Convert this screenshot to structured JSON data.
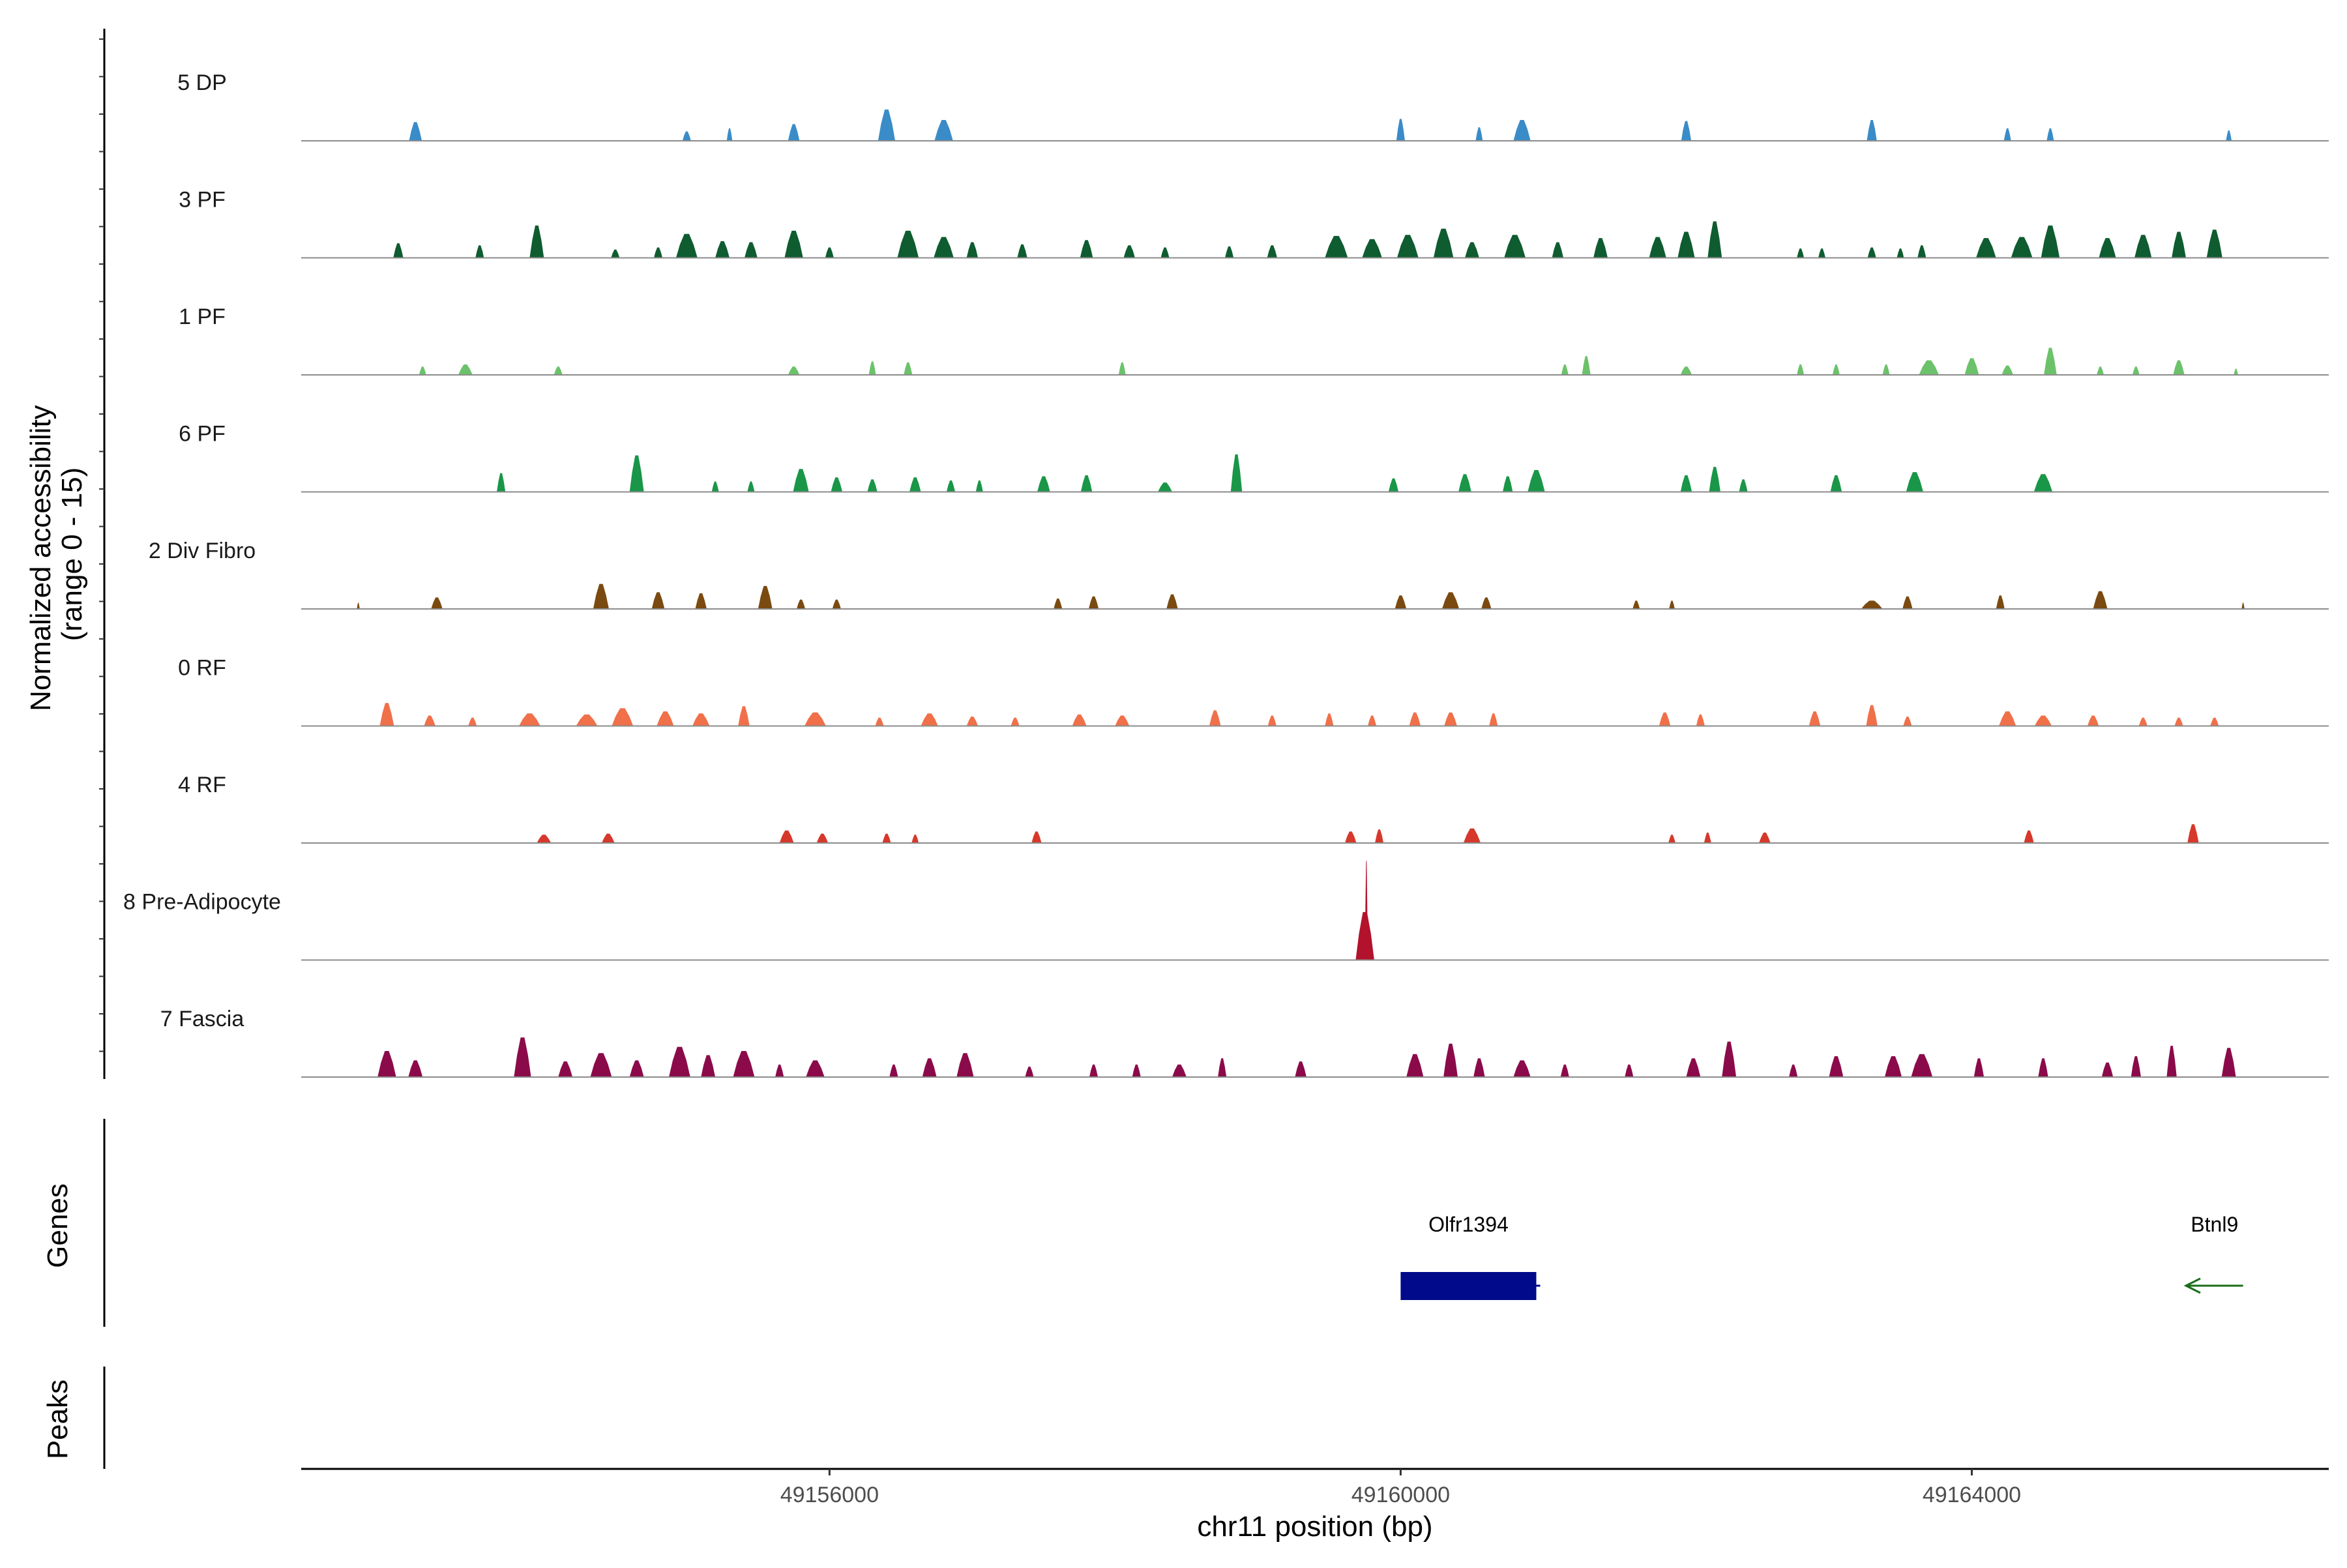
{
  "chart_data": {
    "type": "area",
    "region": {
      "chrom": "chr11",
      "start": 49152300,
      "end": 49166500
    },
    "xlabel": "chr11 position (bp)",
    "x_ticks": [
      49156000,
      49160000,
      49164000
    ],
    "x_tick_labels": [
      "49156000",
      "49160000",
      "49164000"
    ],
    "ylabel": "Normalized accessibility\n(range 0 - 15)",
    "ylabel_lines": [
      "Normalized accessibility",
      "(range 0 - 15)"
    ],
    "ylim": [
      0,
      15
    ],
    "panel_labels": {
      "genes": "Genes",
      "peaks": "Peaks"
    },
    "series": [
      {
        "name": "5 DP",
        "color": "#3a8cc8",
        "data_end": 49165900,
        "peaks": [
          [
            49153100,
            1.8,
            90
          ],
          [
            49155000,
            0.9,
            60
          ],
          [
            49155300,
            1.2,
            40
          ],
          [
            49155750,
            1.6,
            80
          ],
          [
            49156400,
            3.0,
            120
          ],
          [
            49156800,
            2.0,
            130
          ],
          [
            49160000,
            2.1,
            60
          ],
          [
            49160550,
            1.3,
            50
          ],
          [
            49160850,
            2.0,
            120
          ],
          [
            49162000,
            1.9,
            70
          ],
          [
            49163300,
            2.0,
            70
          ],
          [
            49164250,
            1.2,
            50
          ],
          [
            49164550,
            1.2,
            50
          ],
          [
            49165800,
            1.0,
            40
          ]
        ]
      },
      {
        "name": "3 PF",
        "color": "#0e5c30",
        "data_end": 49165900,
        "peaks": [
          [
            49152980,
            1.4,
            70
          ],
          [
            49153550,
            1.2,
            60
          ],
          [
            49153950,
            3.1,
            100
          ],
          [
            49154500,
            0.8,
            60
          ],
          [
            49154800,
            1.0,
            60
          ],
          [
            49155000,
            2.3,
            150
          ],
          [
            49155250,
            1.6,
            100
          ],
          [
            49155450,
            1.5,
            90
          ],
          [
            49155750,
            2.6,
            130
          ],
          [
            49156000,
            1.0,
            60
          ],
          [
            49156550,
            2.6,
            150
          ],
          [
            49156800,
            2.0,
            140
          ],
          [
            49157000,
            1.5,
            80
          ],
          [
            49157350,
            1.3,
            70
          ],
          [
            49157800,
            1.7,
            90
          ],
          [
            49158100,
            1.2,
            80
          ],
          [
            49158350,
            1.0,
            60
          ],
          [
            49158800,
            1.1,
            60
          ],
          [
            49159100,
            1.2,
            70
          ],
          [
            49159550,
            2.1,
            160
          ],
          [
            49159800,
            1.8,
            140
          ],
          [
            49160050,
            2.2,
            150
          ],
          [
            49160300,
            2.8,
            140
          ],
          [
            49160500,
            1.5,
            100
          ],
          [
            49160800,
            2.2,
            150
          ],
          [
            49161100,
            1.5,
            80
          ],
          [
            49161400,
            1.9,
            100
          ],
          [
            49161800,
            2.0,
            120
          ],
          [
            49162000,
            2.5,
            120
          ],
          [
            49162200,
            3.5,
            100
          ],
          [
            49162800,
            0.9,
            50
          ],
          [
            49162950,
            0.9,
            50
          ],
          [
            49163300,
            1.0,
            60
          ],
          [
            49163500,
            0.9,
            50
          ],
          [
            49163650,
            1.2,
            60
          ],
          [
            49164100,
            1.9,
            140
          ],
          [
            49164350,
            2.0,
            150
          ],
          [
            49164550,
            3.1,
            130
          ],
          [
            49164950,
            1.9,
            120
          ],
          [
            49165200,
            2.2,
            120
          ],
          [
            49165450,
            2.5,
            100
          ],
          [
            49165700,
            2.7,
            110
          ]
        ]
      },
      {
        "name": "1 PF",
        "color": "#6cc26a",
        "data_end": 49165900,
        "peaks": [
          [
            49153150,
            0.8,
            50
          ],
          [
            49153450,
            1.0,
            100
          ],
          [
            49154100,
            0.8,
            60
          ],
          [
            49155750,
            0.8,
            80
          ],
          [
            49156300,
            1.3,
            50
          ],
          [
            49156550,
            1.2,
            60
          ],
          [
            49158050,
            1.2,
            50
          ],
          [
            49161150,
            1.0,
            50
          ],
          [
            49161300,
            1.8,
            60
          ],
          [
            49162000,
            0.8,
            80
          ],
          [
            49162800,
            1.0,
            50
          ],
          [
            49163050,
            1.0,
            50
          ],
          [
            49163400,
            1.0,
            50
          ],
          [
            49163700,
            1.4,
            140
          ],
          [
            49164000,
            1.6,
            100
          ],
          [
            49164250,
            0.9,
            80
          ],
          [
            49164550,
            2.6,
            90
          ],
          [
            49164900,
            0.8,
            50
          ],
          [
            49165150,
            0.8,
            50
          ],
          [
            49165450,
            1.4,
            80
          ],
          [
            49165850,
            0.6,
            30
          ]
        ]
      },
      {
        "name": "6 PF",
        "color": "#1a9648",
        "data_end": 49165900,
        "peaks": [
          [
            49153700,
            1.8,
            60
          ],
          [
            49154650,
            3.5,
            100
          ],
          [
            49155200,
            1.0,
            50
          ],
          [
            49155450,
            1.0,
            50
          ],
          [
            49155800,
            2.2,
            110
          ],
          [
            49156050,
            1.4,
            80
          ],
          [
            49156300,
            1.2,
            70
          ],
          [
            49156600,
            1.4,
            80
          ],
          [
            49156850,
            1.1,
            60
          ],
          [
            49157050,
            1.1,
            50
          ],
          [
            49157500,
            1.5,
            90
          ],
          [
            49157800,
            1.6,
            80
          ],
          [
            49158350,
            0.9,
            100
          ],
          [
            49158850,
            3.6,
            80
          ],
          [
            49159950,
            1.3,
            70
          ],
          [
            49160450,
            1.7,
            90
          ],
          [
            49160750,
            1.5,
            70
          ],
          [
            49160950,
            2.1,
            120
          ],
          [
            49162000,
            1.6,
            80
          ],
          [
            49162200,
            2.4,
            80
          ],
          [
            49162400,
            1.2,
            60
          ],
          [
            49163050,
            1.6,
            80
          ],
          [
            49163600,
            1.9,
            120
          ],
          [
            49164500,
            1.7,
            130
          ]
        ]
      },
      {
        "name": "2 Div Fibro",
        "color": "#7a4a10",
        "data_end": 49165900,
        "peaks": [
          [
            49152700,
            0.6,
            20
          ],
          [
            49153250,
            1.1,
            80
          ],
          [
            49154400,
            2.4,
            110
          ],
          [
            49154800,
            1.6,
            90
          ],
          [
            49155100,
            1.5,
            80
          ],
          [
            49155550,
            2.2,
            100
          ],
          [
            49155800,
            0.9,
            60
          ],
          [
            49156050,
            0.9,
            60
          ],
          [
            49157600,
            1.0,
            60
          ],
          [
            49157850,
            1.2,
            70
          ],
          [
            49158400,
            1.4,
            80
          ],
          [
            49160000,
            1.3,
            80
          ],
          [
            49160350,
            1.6,
            120
          ],
          [
            49160600,
            1.1,
            70
          ],
          [
            49161650,
            0.8,
            50
          ],
          [
            49161900,
            0.8,
            40
          ],
          [
            49163300,
            0.8,
            150
          ],
          [
            49163550,
            1.2,
            70
          ],
          [
            49164200,
            1.3,
            60
          ],
          [
            49164900,
            1.7,
            100
          ],
          [
            49165900,
            0.6,
            20
          ]
        ]
      },
      {
        "name": "0 RF",
        "color": "#f0704a",
        "data_end": 49165900,
        "peaks": [
          [
            49152900,
            2.2,
            100
          ],
          [
            49153200,
            1.0,
            80
          ],
          [
            49153500,
            0.8,
            60
          ],
          [
            49153900,
            1.2,
            150
          ],
          [
            49154300,
            1.1,
            150
          ],
          [
            49154550,
            1.7,
            150
          ],
          [
            49154850,
            1.4,
            120
          ],
          [
            49155100,
            1.2,
            120
          ],
          [
            49155400,
            1.9,
            80
          ],
          [
            49155900,
            1.3,
            150
          ],
          [
            49156350,
            0.8,
            60
          ],
          [
            49156700,
            1.2,
            120
          ],
          [
            49157000,
            0.9,
            80
          ],
          [
            49157300,
            0.8,
            60
          ],
          [
            49157750,
            1.1,
            100
          ],
          [
            49158050,
            1.0,
            100
          ],
          [
            49158700,
            1.5,
            80
          ],
          [
            49159100,
            1.0,
            60
          ],
          [
            49159500,
            1.2,
            60
          ],
          [
            49159800,
            1.0,
            60
          ],
          [
            49160100,
            1.3,
            80
          ],
          [
            49160350,
            1.3,
            90
          ],
          [
            49160650,
            1.2,
            60
          ],
          [
            49161850,
            1.3,
            80
          ],
          [
            49162100,
            1.1,
            60
          ],
          [
            49162900,
            1.4,
            80
          ],
          [
            49163300,
            2.0,
            80
          ],
          [
            49163550,
            0.9,
            60
          ],
          [
            49164250,
            1.4,
            120
          ],
          [
            49164500,
            1.0,
            120
          ],
          [
            49164850,
            1.0,
            80
          ],
          [
            49165200,
            0.8,
            60
          ],
          [
            49165450,
            0.8,
            60
          ],
          [
            49165700,
            0.8,
            60
          ]
        ]
      },
      {
        "name": "4 RF",
        "color": "#d6382b",
        "data_end": 49165900,
        "peaks": [
          [
            49154000,
            0.8,
            100
          ],
          [
            49154450,
            0.9,
            90
          ],
          [
            49155700,
            1.2,
            100
          ],
          [
            49155950,
            0.9,
            80
          ],
          [
            49156400,
            0.9,
            60
          ],
          [
            49156600,
            0.8,
            50
          ],
          [
            49157450,
            1.1,
            70
          ],
          [
            49159650,
            1.1,
            80
          ],
          [
            49159850,
            1.3,
            60
          ],
          [
            49160500,
            1.4,
            120
          ],
          [
            49161900,
            0.8,
            50
          ],
          [
            49162150,
            1.0,
            50
          ],
          [
            49162550,
            1.0,
            80
          ],
          [
            49164400,
            1.2,
            70
          ],
          [
            49165550,
            1.8,
            80
          ]
        ]
      },
      {
        "name": "8 Pre-Adipocyte",
        "color": "#b3122c",
        "data_end": 49165900,
        "peaks": [
          [
            49159750,
            4.6,
            130
          ],
          [
            49159760,
            9.5,
            20
          ]
        ]
      },
      {
        "name": "7 Fascia",
        "color": "#8b0b4a",
        "data_end": 49165900,
        "peaks": [
          [
            49152900,
            2.5,
            130
          ],
          [
            49153100,
            1.6,
            100
          ],
          [
            49153850,
            3.8,
            120
          ],
          [
            49154150,
            1.5,
            100
          ],
          [
            49154400,
            2.3,
            150
          ],
          [
            49154650,
            1.6,
            100
          ],
          [
            49154950,
            2.9,
            150
          ],
          [
            49155150,
            2.1,
            100
          ],
          [
            49155400,
            2.5,
            150
          ],
          [
            49155650,
            1.2,
            60
          ],
          [
            49155900,
            1.6,
            130
          ],
          [
            49156450,
            1.2,
            60
          ],
          [
            49156700,
            1.8,
            100
          ],
          [
            49156950,
            2.3,
            120
          ],
          [
            49157400,
            1.0,
            60
          ],
          [
            49157850,
            1.2,
            60
          ],
          [
            49158150,
            1.2,
            60
          ],
          [
            49158450,
            1.2,
            100
          ],
          [
            49158750,
            1.8,
            60
          ],
          [
            49159300,
            1.5,
            80
          ],
          [
            49160100,
            2.2,
            120
          ],
          [
            49160350,
            3.2,
            100
          ],
          [
            49160550,
            1.8,
            80
          ],
          [
            49160850,
            1.6,
            120
          ],
          [
            49161150,
            1.2,
            60
          ],
          [
            49161600,
            1.2,
            60
          ],
          [
            49162050,
            1.8,
            100
          ],
          [
            49162300,
            3.4,
            100
          ],
          [
            49162750,
            1.2,
            60
          ],
          [
            49163050,
            2.0,
            100
          ],
          [
            49163450,
            2.0,
            120
          ],
          [
            49163650,
            2.2,
            150
          ],
          [
            49164050,
            1.8,
            70
          ],
          [
            49164500,
            1.8,
            70
          ],
          [
            49164950,
            1.4,
            80
          ],
          [
            49165150,
            2.0,
            70
          ],
          [
            49165400,
            3.0,
            70
          ],
          [
            49165800,
            2.8,
            100
          ]
        ]
      }
    ],
    "genes": [
      {
        "name": "Olfr1394",
        "start": 49160000,
        "end": 49160950,
        "strand": "+",
        "color": "#000a8a",
        "style": "box"
      },
      {
        "name": "Btnl9",
        "start": 49165500,
        "end": 49165900,
        "strand": "-",
        "color": "#1a6e1a",
        "style": "arrow"
      }
    ],
    "peaks_panel": [],
    "grid": false
  }
}
